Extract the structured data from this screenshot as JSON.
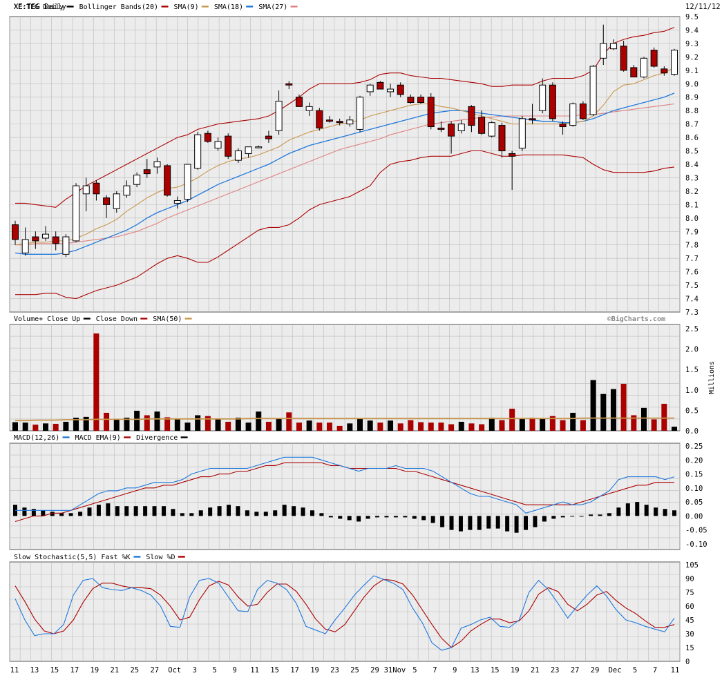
{
  "header": {
    "symbol_label": "XE:TEG Daily",
    "date_label": "12/11/12"
  },
  "watermark": "©BigCharts.com",
  "legends": {
    "price": [
      {
        "label": "XE:TEG Daily",
        "color": "#000000"
      },
      {
        "label": "Bollinger Bands(20)",
        "color": "#aa0000"
      },
      {
        "label": "SMA(9)",
        "color": "#c8964b"
      },
      {
        "label": "SMA(18)",
        "color": "#1e78dc"
      },
      {
        "label": "SMA(27)",
        "color": "#e08080"
      }
    ],
    "volume": [
      {
        "label": "Volume+ Close Up",
        "color": "#000000"
      },
      {
        "label": "Close Down",
        "color": "#aa0000"
      },
      {
        "label": "SMA(50)",
        "color": "#c8964b"
      }
    ],
    "macd": [
      {
        "label": "MACD(12,26)",
        "color": "#1e78dc"
      },
      {
        "label": "MACD EMA(9)",
        "color": "#aa0000"
      },
      {
        "label": "Divergence",
        "color": "#000000"
      }
    ],
    "stoch": [
      {
        "label": "Slow Stochastic(5,5) Fast %K",
        "color": "#1e78dc"
      },
      {
        "label": "Slow %D",
        "color": "#aa0000"
      }
    ]
  },
  "volume_unit": "Millions",
  "colors": {
    "up": "#000000",
    "down": "#aa0000",
    "bollinger": "#aa0000",
    "sma9": "#c8964b",
    "sma18": "#1e78dc",
    "sma27": "#e08080",
    "grid": "#bbbbbb",
    "panel_bg": "#ececec",
    "macd": "#1e78dc",
    "macd_ema": "#aa0000",
    "stoch_k": "#1e78dc",
    "stoch_d": "#aa0000"
  },
  "chart_data": {
    "type": "candlestick",
    "x_labels": [
      "11",
      "13",
      "15",
      "17",
      "19",
      "21",
      "25",
      "27",
      "Oct",
      "3",
      "5",
      "9",
      "11",
      "15",
      "17",
      "19",
      "23",
      "25",
      "29",
      "31Nov",
      "5",
      "7",
      "9",
      "13",
      "15",
      "19",
      "21",
      "23",
      "27",
      "29",
      "Dec",
      "5",
      "7",
      "11"
    ],
    "price_axis": {
      "ylim": [
        7.3,
        9.5
      ],
      "ticks": [
        "9.5",
        "9.4",
        "9.3",
        "9.2",
        "9.1",
        "9.0",
        "8.9",
        "8.8",
        "8.7",
        "8.6",
        "8.5",
        "8.4",
        "8.3",
        "8.2",
        "8.1",
        "8.0",
        "7.9",
        "7.8",
        "7.7",
        "7.6",
        "7.5",
        "7.4",
        "7.3"
      ]
    },
    "candles": [
      {
        "o": 7.95,
        "h": 7.98,
        "l": 7.8,
        "c": 7.84
      },
      {
        "o": 7.74,
        "h": 7.93,
        "l": 7.72,
        "c": 7.84
      },
      {
        "o": 7.86,
        "h": 7.9,
        "l": 7.77,
        "c": 7.83
      },
      {
        "o": 7.85,
        "h": 7.94,
        "l": 7.83,
        "c": 7.88
      },
      {
        "o": 7.86,
        "h": 7.9,
        "l": 7.76,
        "c": 7.81
      },
      {
        "o": 7.73,
        "h": 7.88,
        "l": 7.71,
        "c": 7.86
      },
      {
        "o": 7.83,
        "h": 8.26,
        "l": 7.82,
        "c": 8.24
      },
      {
        "o": 8.18,
        "h": 8.3,
        "l": 8.05,
        "c": 8.24
      },
      {
        "o": 8.26,
        "h": 8.28,
        "l": 8.13,
        "c": 8.18
      },
      {
        "o": 8.15,
        "h": 8.17,
        "l": 8.0,
        "c": 8.1
      },
      {
        "o": 8.07,
        "h": 8.2,
        "l": 8.04,
        "c": 8.18
      },
      {
        "o": 8.17,
        "h": 8.28,
        "l": 8.15,
        "c": 8.24
      },
      {
        "o": 8.25,
        "h": 8.34,
        "l": 8.23,
        "c": 8.32
      },
      {
        "o": 8.36,
        "h": 8.44,
        "l": 8.3,
        "c": 8.33
      },
      {
        "o": 8.38,
        "h": 8.45,
        "l": 8.33,
        "c": 8.42
      },
      {
        "o": 8.39,
        "h": 8.4,
        "l": 8.16,
        "c": 8.17
      },
      {
        "o": 8.11,
        "h": 8.16,
        "l": 8.07,
        "c": 8.13
      },
      {
        "o": 8.14,
        "h": 8.4,
        "l": 8.12,
        "c": 8.4
      },
      {
        "o": 8.37,
        "h": 8.64,
        "l": 8.36,
        "c": 8.62
      },
      {
        "o": 8.63,
        "h": 8.65,
        "l": 8.56,
        "c": 8.57
      },
      {
        "o": 8.52,
        "h": 8.6,
        "l": 8.5,
        "c": 8.57
      },
      {
        "o": 8.61,
        "h": 8.63,
        "l": 8.44,
        "c": 8.46
      },
      {
        "o": 8.43,
        "h": 8.52,
        "l": 8.41,
        "c": 8.5
      },
      {
        "o": 8.48,
        "h": 8.53,
        "l": 8.45,
        "c": 8.53
      },
      {
        "o": 8.53,
        "h": 8.54,
        "l": 8.52,
        "c": 8.53
      },
      {
        "o": 8.61,
        "h": 8.65,
        "l": 8.56,
        "c": 8.59
      },
      {
        "o": 8.65,
        "h": 8.95,
        "l": 8.62,
        "c": 8.87
      },
      {
        "o": 9.0,
        "h": 9.02,
        "l": 8.96,
        "c": 8.99
      },
      {
        "o": 8.9,
        "h": 8.92,
        "l": 8.83,
        "c": 8.83
      },
      {
        "o": 8.8,
        "h": 8.86,
        "l": 8.76,
        "c": 8.83
      },
      {
        "o": 8.8,
        "h": 8.82,
        "l": 8.65,
        "c": 8.67
      },
      {
        "o": 8.73,
        "h": 8.76,
        "l": 8.71,
        "c": 8.72
      },
      {
        "o": 8.72,
        "h": 8.74,
        "l": 8.69,
        "c": 8.71
      },
      {
        "o": 8.7,
        "h": 8.76,
        "l": 8.68,
        "c": 8.73
      },
      {
        "o": 8.66,
        "h": 8.91,
        "l": 8.64,
        "c": 8.9
      },
      {
        "o": 8.94,
        "h": 9.0,
        "l": 8.91,
        "c": 8.99
      },
      {
        "o": 9.01,
        "h": 9.02,
        "l": 8.96,
        "c": 8.96
      },
      {
        "o": 8.94,
        "h": 9.0,
        "l": 8.9,
        "c": 8.96
      },
      {
        "o": 8.99,
        "h": 9.01,
        "l": 8.9,
        "c": 8.92
      },
      {
        "o": 8.9,
        "h": 8.92,
        "l": 8.85,
        "c": 8.86
      },
      {
        "o": 8.9,
        "h": 8.92,
        "l": 8.85,
        "c": 8.86
      },
      {
        "o": 8.9,
        "h": 8.93,
        "l": 8.66,
        "c": 8.68
      },
      {
        "o": 8.67,
        "h": 8.72,
        "l": 8.64,
        "c": 8.66
      },
      {
        "o": 8.7,
        "h": 8.72,
        "l": 8.48,
        "c": 8.61
      },
      {
        "o": 8.65,
        "h": 8.73,
        "l": 8.63,
        "c": 8.7
      },
      {
        "o": 8.83,
        "h": 8.84,
        "l": 8.64,
        "c": 8.69
      },
      {
        "o": 8.75,
        "h": 8.8,
        "l": 8.62,
        "c": 8.63
      },
      {
        "o": 8.61,
        "h": 8.72,
        "l": 8.6,
        "c": 8.71
      },
      {
        "o": 8.69,
        "h": 8.71,
        "l": 8.45,
        "c": 8.5
      },
      {
        "o": 8.48,
        "h": 8.5,
        "l": 8.21,
        "c": 8.46
      },
      {
        "o": 8.52,
        "h": 8.76,
        "l": 8.5,
        "c": 8.74
      },
      {
        "o": 8.74,
        "h": 8.85,
        "l": 8.7,
        "c": 8.73
      },
      {
        "o": 8.8,
        "h": 9.04,
        "l": 8.78,
        "c": 8.99
      },
      {
        "o": 8.99,
        "h": 9.01,
        "l": 8.72,
        "c": 8.74
      },
      {
        "o": 8.7,
        "h": 8.72,
        "l": 8.62,
        "c": 8.68
      },
      {
        "o": 8.69,
        "h": 8.86,
        "l": 8.68,
        "c": 8.85
      },
      {
        "o": 8.85,
        "h": 8.87,
        "l": 8.73,
        "c": 8.74
      },
      {
        "o": 8.77,
        "h": 9.14,
        "l": 8.76,
        "c": 9.13
      },
      {
        "o": 9.19,
        "h": 9.44,
        "l": 9.14,
        "c": 9.3
      },
      {
        "o": 9.26,
        "h": 9.33,
        "l": 9.25,
        "c": 9.3
      },
      {
        "o": 9.28,
        "h": 9.32,
        "l": 9.09,
        "c": 9.1
      },
      {
        "o": 9.12,
        "h": 9.14,
        "l": 9.05,
        "c": 9.05
      },
      {
        "o": 9.05,
        "h": 9.2,
        "l": 9.04,
        "c": 9.19
      },
      {
        "o": 9.25,
        "h": 9.27,
        "l": 9.12,
        "c": 9.13
      },
      {
        "o": 9.11,
        "h": 9.13,
        "l": 9.06,
        "c": 9.08
      },
      {
        "o": 9.07,
        "h": 9.26,
        "l": 9.06,
        "c": 9.25
      }
    ],
    "sma9": [
      7.8,
      7.81,
      7.82,
      7.82,
      7.83,
      7.83,
      7.85,
      7.88,
      7.92,
      7.95,
      7.99,
      8.05,
      8.1,
      8.15,
      8.19,
      8.22,
      8.23,
      8.26,
      8.3,
      8.35,
      8.39,
      8.42,
      8.44,
      8.45,
      8.47,
      8.5,
      8.53,
      8.58,
      8.61,
      8.64,
      8.66,
      8.68,
      8.7,
      8.71,
      8.73,
      8.76,
      8.78,
      8.8,
      8.82,
      8.84,
      8.85,
      8.85,
      8.83,
      8.82,
      8.8,
      8.78,
      8.76,
      8.74,
      8.72,
      8.7,
      8.7,
      8.7,
      8.7,
      8.7,
      8.7,
      8.71,
      8.72,
      8.76,
      8.84,
      8.94,
      8.99,
      9.0,
      9.03,
      9.06,
      9.08,
      9.12
    ],
    "sma18": [
      7.74,
      7.73,
      7.73,
      7.73,
      7.73,
      7.74,
      7.76,
      7.79,
      7.82,
      7.85,
      7.88,
      7.91,
      7.95,
      8.0,
      8.04,
      8.07,
      8.1,
      8.13,
      8.17,
      8.21,
      8.25,
      8.28,
      8.31,
      8.34,
      8.37,
      8.4,
      8.44,
      8.48,
      8.51,
      8.54,
      8.56,
      8.58,
      8.6,
      8.62,
      8.64,
      8.66,
      8.68,
      8.7,
      8.72,
      8.74,
      8.76,
      8.78,
      8.79,
      8.8,
      8.8,
      8.79,
      8.78,
      8.77,
      8.76,
      8.75,
      8.74,
      8.73,
      8.72,
      8.72,
      8.71,
      8.71,
      8.72,
      8.74,
      8.77,
      8.8,
      8.82,
      8.84,
      8.86,
      8.88,
      8.9,
      8.93
    ],
    "sma27": [
      7.8,
      7.8,
      7.81,
      7.81,
      7.81,
      7.81,
      7.82,
      7.83,
      7.84,
      7.85,
      7.86,
      7.88,
      7.9,
      7.93,
      7.96,
      8.0,
      8.03,
      8.06,
      8.09,
      8.12,
      8.15,
      8.18,
      8.21,
      8.24,
      8.27,
      8.3,
      8.33,
      8.36,
      8.39,
      8.42,
      8.45,
      8.48,
      8.51,
      8.53,
      8.55,
      8.57,
      8.59,
      8.62,
      8.64,
      8.66,
      8.68,
      8.7,
      8.71,
      8.72,
      8.73,
      8.74,
      8.75,
      8.75,
      8.76,
      8.76,
      8.76,
      8.76,
      8.76,
      8.76,
      8.76,
      8.76,
      8.77,
      8.77,
      8.78,
      8.79,
      8.8,
      8.81,
      8.82,
      8.83,
      8.84,
      8.85
    ],
    "bb_upper": [
      8.11,
      8.11,
      8.1,
      8.09,
      8.08,
      8.14,
      8.19,
      8.24,
      8.28,
      8.32,
      8.36,
      8.4,
      8.44,
      8.48,
      8.52,
      8.56,
      8.6,
      8.62,
      8.66,
      8.68,
      8.7,
      8.71,
      8.72,
      8.73,
      8.74,
      8.76,
      8.8,
      8.85,
      8.9,
      8.96,
      9.0,
      9.0,
      9.0,
      9.0,
      9.01,
      9.03,
      9.07,
      9.08,
      9.08,
      9.06,
      9.05,
      9.04,
      9.04,
      9.03,
      9.02,
      9.01,
      9.0,
      8.98,
      8.98,
      8.99,
      8.99,
      8.99,
      9.02,
      9.04,
      9.04,
      9.04,
      9.06,
      9.1,
      9.22,
      9.3,
      9.33,
      9.35,
      9.36,
      9.38,
      9.39,
      9.42
    ],
    "bb_lower": [
      7.43,
      7.43,
      7.43,
      7.44,
      7.44,
      7.41,
      7.4,
      7.43,
      7.46,
      7.48,
      7.5,
      7.53,
      7.56,
      7.61,
      7.66,
      7.7,
      7.72,
      7.7,
      7.67,
      7.67,
      7.71,
      7.76,
      7.81,
      7.86,
      7.91,
      7.93,
      7.93,
      7.95,
      8.0,
      8.06,
      8.1,
      8.12,
      8.14,
      8.16,
      8.2,
      8.24,
      8.34,
      8.4,
      8.42,
      8.43,
      8.45,
      8.46,
      8.46,
      8.46,
      8.48,
      8.5,
      8.5,
      8.48,
      8.46,
      8.46,
      8.47,
      8.47,
      8.47,
      8.47,
      8.47,
      8.46,
      8.45,
      8.4,
      8.36,
      8.34,
      8.34,
      8.34,
      8.34,
      8.35,
      8.37,
      8.38
    ],
    "volume": {
      "unit": "Millions",
      "ylim": [
        0,
        2.6
      ],
      "ticks": [
        "2.5",
        "2.0",
        "1.5",
        "1.0",
        "0.5",
        "0.0"
      ],
      "values": [
        0.21,
        0.2,
        0.15,
        0.18,
        0.17,
        0.22,
        0.32,
        0.34,
        2.38,
        0.44,
        0.29,
        0.32,
        0.49,
        0.38,
        0.47,
        0.33,
        0.28,
        0.2,
        0.38,
        0.36,
        0.28,
        0.22,
        0.32,
        0.2,
        0.47,
        0.22,
        0.31,
        0.45,
        0.2,
        0.25,
        0.2,
        0.2,
        0.12,
        0.18,
        0.3,
        0.25,
        0.2,
        0.25,
        0.18,
        0.26,
        0.21,
        0.2,
        0.2,
        0.16,
        0.22,
        0.18,
        0.16,
        0.32,
        0.26,
        0.54,
        0.3,
        0.32,
        0.3,
        0.36,
        0.26,
        0.44,
        0.26,
        1.24,
        0.9,
        1.02,
        1.15,
        0.38,
        0.56,
        0.28,
        0.66,
        0.1
      ],
      "sma50": [
        0.25,
        0.25,
        0.26,
        0.26,
        0.26,
        0.27,
        0.27,
        0.27,
        0.28,
        0.28,
        0.28,
        0.28,
        0.28,
        0.29,
        0.29,
        0.29,
        0.29,
        0.29,
        0.29,
        0.29,
        0.29,
        0.29,
        0.29,
        0.3,
        0.3,
        0.3,
        0.3,
        0.3,
        0.3,
        0.3,
        0.3,
        0.3,
        0.3,
        0.3,
        0.3,
        0.3,
        0.3,
        0.3,
        0.3,
        0.3,
        0.3,
        0.3,
        0.3,
        0.3,
        0.3,
        0.3,
        0.3,
        0.3,
        0.3,
        0.3,
        0.3,
        0.3,
        0.3,
        0.3,
        0.3,
        0.3,
        0.31,
        0.31,
        0.31,
        0.31,
        0.31,
        0.31,
        0.31,
        0.31,
        0.31,
        0.31
      ]
    },
    "macd": {
      "ylim": [
        -0.12,
        0.26
      ],
      "ticks": [
        "0.25",
        "0.20",
        "0.15",
        "0.10",
        "0.05",
        "0.00",
        "-0.05",
        "-0.10"
      ],
      "macd": [
        0.02,
        0.02,
        0.02,
        0.02,
        0.02,
        0.02,
        0.02,
        0.04,
        0.06,
        0.08,
        0.09,
        0.09,
        0.1,
        0.1,
        0.11,
        0.12,
        0.12,
        0.12,
        0.13,
        0.15,
        0.16,
        0.17,
        0.17,
        0.17,
        0.17,
        0.17,
        0.18,
        0.19,
        0.2,
        0.21,
        0.21,
        0.21,
        0.21,
        0.2,
        0.19,
        0.18,
        0.17,
        0.16,
        0.17,
        0.17,
        0.17,
        0.18,
        0.17,
        0.17,
        0.17,
        0.16,
        0.14,
        0.12,
        0.1,
        0.08,
        0.07,
        0.07,
        0.06,
        0.05,
        0.04,
        0.01,
        0.02,
        0.03,
        0.04,
        0.05,
        0.04,
        0.04,
        0.05,
        0.07,
        0.09,
        0.13,
        0.14,
        0.14,
        0.14,
        0.14,
        0.13,
        0.14
      ],
      "ema": [
        -0.02,
        -0.01,
        0.0,
        0.0,
        0.01,
        0.01,
        0.02,
        0.03,
        0.04,
        0.05,
        0.06,
        0.07,
        0.08,
        0.09,
        0.1,
        0.1,
        0.11,
        0.11,
        0.12,
        0.13,
        0.14,
        0.14,
        0.15,
        0.15,
        0.16,
        0.16,
        0.17,
        0.18,
        0.18,
        0.19,
        0.19,
        0.19,
        0.19,
        0.19,
        0.18,
        0.18,
        0.17,
        0.17,
        0.17,
        0.17,
        0.17,
        0.17,
        0.16,
        0.16,
        0.15,
        0.14,
        0.13,
        0.12,
        0.11,
        0.1,
        0.09,
        0.08,
        0.07,
        0.06,
        0.05,
        0.04,
        0.04,
        0.04,
        0.04,
        0.04,
        0.04,
        0.05,
        0.06,
        0.07,
        0.08,
        0.09,
        0.1,
        0.11,
        0.11,
        0.12,
        0.12,
        0.12
      ],
      "divergence": [
        0.04,
        0.03,
        0.025,
        0.02,
        0.015,
        0.01,
        0.01,
        0.015,
        0.03,
        0.04,
        0.045,
        0.035,
        0.035,
        0.035,
        0.035,
        0.035,
        0.035,
        0.025,
        0.01,
        0.01,
        0.02,
        0.03,
        0.035,
        0.04,
        0.035,
        0.02,
        0.015,
        0.015,
        0.02,
        0.04,
        0.035,
        0.03,
        0.02,
        0.01,
        -0.005,
        -0.01,
        -0.015,
        -0.02,
        -0.01,
        -0.005,
        -0.005,
        -0.005,
        -0.005,
        -0.01,
        -0.015,
        -0.025,
        -0.04,
        -0.05,
        -0.055,
        -0.05,
        -0.05,
        -0.045,
        -0.045,
        -0.055,
        -0.06,
        -0.05,
        -0.04,
        -0.02,
        -0.01,
        -0.005,
        0.0,
        0.0,
        0.005,
        0.005,
        0.01,
        0.03,
        0.045,
        0.05,
        0.04,
        0.03,
        0.025,
        0.02
      ]
    },
    "stochastic": {
      "ylim": [
        0,
        108
      ],
      "ticks": [
        "105",
        "90",
        "75",
        "60",
        "45",
        "30",
        "15",
        "0"
      ],
      "fast_k": [
        68,
        45,
        28,
        30,
        30,
        40,
        72,
        88,
        90,
        80,
        78,
        77,
        80,
        77,
        72,
        60,
        38,
        37,
        70,
        88,
        90,
        85,
        70,
        55,
        54,
        78,
        88,
        85,
        78,
        63,
        38,
        34,
        30,
        45,
        58,
        72,
        83,
        93,
        89,
        85,
        78,
        58,
        42,
        20,
        12,
        15,
        36,
        40,
        45,
        48,
        38,
        37,
        45,
        75,
        88,
        78,
        63,
        47,
        60,
        72,
        82,
        71,
        56,
        45,
        42,
        38,
        35,
        32,
        47
      ],
      "slow_d": [
        82,
        65,
        46,
        33,
        30,
        33,
        45,
        64,
        79,
        85,
        85,
        82,
        80,
        80,
        79,
        72,
        60,
        45,
        48,
        67,
        82,
        87,
        83,
        70,
        60,
        62,
        75,
        84,
        84,
        76,
        62,
        46,
        35,
        32,
        40,
        55,
        70,
        82,
        89,
        88,
        84,
        72,
        56,
        40,
        25,
        15,
        22,
        33,
        40,
        46,
        46,
        42,
        44,
        55,
        73,
        80,
        76,
        62,
        55,
        62,
        72,
        76,
        66,
        58,
        52,
        44,
        37,
        37,
        40
      ]
    }
  }
}
